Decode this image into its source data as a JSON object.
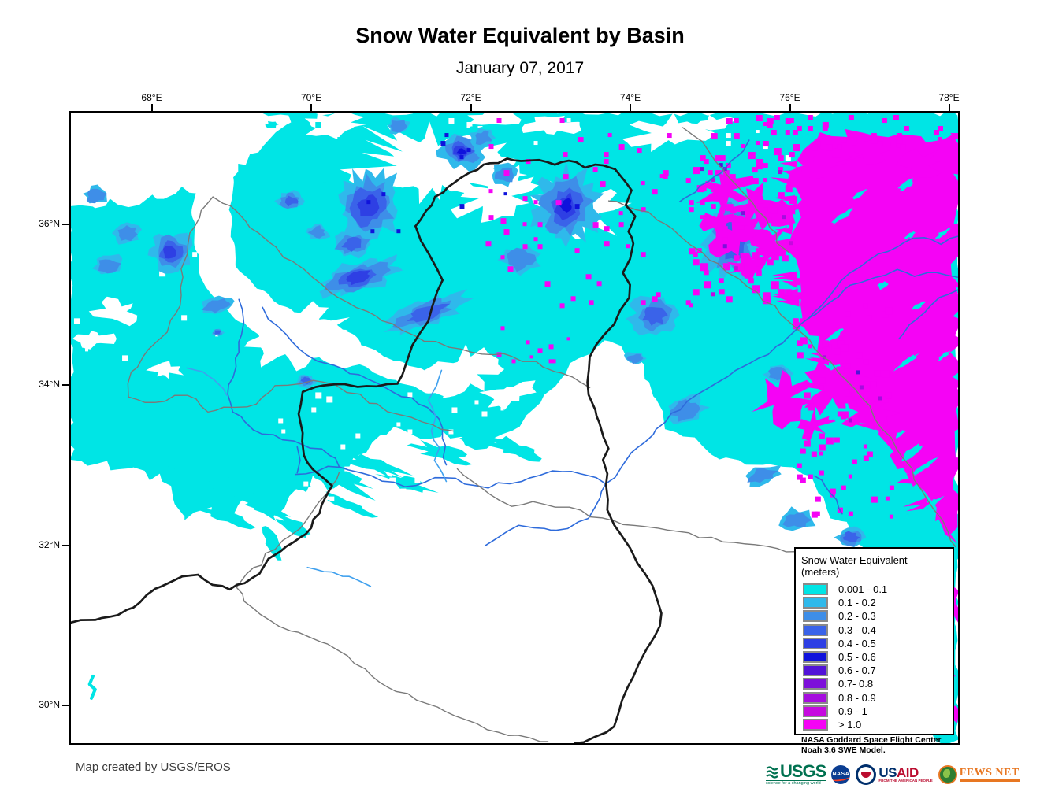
{
  "title": "Snow Water Equivalent by Basin",
  "date": "January 07, 2017",
  "axes": {
    "longitude_ticks": [
      "68°E",
      "70°E",
      "72°E",
      "74°E",
      "76°E",
      "78°E"
    ],
    "latitude_ticks": [
      "36°N",
      "34°N",
      "32°N",
      "30°N"
    ]
  },
  "legend": {
    "title": "Snow Water Equivalent (meters)",
    "items": [
      {
        "label": "0.001 - 0.1",
        "color": "#00E5E5"
      },
      {
        "label": "0.1 - 0.2",
        "color": "#2FB9EB"
      },
      {
        "label": "0.2 - 0.3",
        "color": "#3E8EE8"
      },
      {
        "label": "0.3 - 0.4",
        "color": "#3A63E9"
      },
      {
        "label": "0.4 - 0.5",
        "color": "#2E3FE4"
      },
      {
        "label": "0.5 - 0.6",
        "color": "#0F12DC"
      },
      {
        "label": "0.6 - 0.7",
        "color": "#5213D8"
      },
      {
        "label": "0.7- 0.8",
        "color": "#7D10DA"
      },
      {
        "label": "0.8 - 0.9",
        "color": "#A50CDE"
      },
      {
        "label": "0.9 - 1",
        "color": "#C609DF"
      },
      {
        "label": "> 1.0",
        "color": "#F503F5"
      }
    ],
    "source_note": [
      "NASA Goddard Space Flight Center",
      "Noah 3.6 SWE Model."
    ]
  },
  "footer": {
    "credit": "Map created by USGS/EROS",
    "logos": [
      {
        "name": "USGS",
        "tagline": "science for a changing world"
      },
      {
        "name": "NASA"
      },
      {
        "name": "USAID",
        "tagline": "FROM THE AMERICAN PEOPLE"
      },
      {
        "name": "FEWS NET"
      }
    ]
  },
  "map_colors": {
    "no_snow": "#FFFFFF",
    "basin_boundary": "#1A1A1A",
    "admin_boundary": "#7A7A7A",
    "river": "#2E6BDB",
    "river_light": "#3FA0EE",
    "frame": "#000000"
  }
}
